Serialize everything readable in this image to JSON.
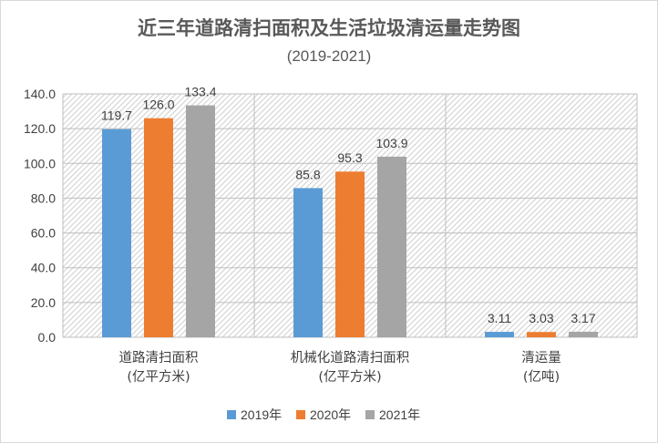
{
  "chart_data": {
    "type": "bar",
    "title": "近三年道路清扫面积及生活垃圾清运量走势图",
    "subtitle": "(2019-2021)",
    "categories": [
      [
        "道路清扫面积",
        "(亿平方米)"
      ],
      [
        "机械化道路清扫面积",
        "(亿平方米)"
      ],
      [
        "清运量",
        "(亿吨)"
      ]
    ],
    "series": [
      {
        "name": "2019年",
        "color": "#5b9bd5",
        "values": [
          119.7,
          85.8,
          3.11
        ],
        "labels": [
          "119.7",
          "85.8",
          "3.11"
        ]
      },
      {
        "name": "2020年",
        "color": "#ed7d31",
        "values": [
          126.0,
          95.3,
          3.03
        ],
        "labels": [
          "126.0",
          "95.3",
          "3.03"
        ]
      },
      {
        "name": "2021年",
        "color": "#a5a5a5",
        "values": [
          133.4,
          103.9,
          3.17
        ],
        "labels": [
          "133.4",
          "103.9",
          "3.17"
        ]
      }
    ],
    "ylim": [
      0,
      140
    ],
    "yticks": [
      "0.0",
      "20.0",
      "40.0",
      "60.0",
      "80.0",
      "100.0",
      "120.0",
      "140.0"
    ],
    "xlabel": "",
    "ylabel": "",
    "grid": true,
    "legend": "bottom"
  }
}
